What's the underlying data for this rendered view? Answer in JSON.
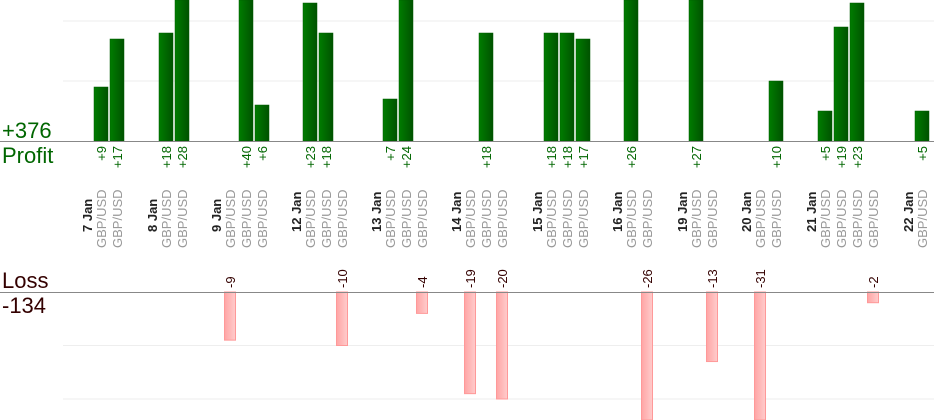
{
  "chart_data": {
    "type": "bar",
    "title": "",
    "profit_total_label": "+376",
    "profit_label": "Profit",
    "loss_label": "Loss",
    "loss_total_label": "-134",
    "colors": {
      "profit": "#006e00",
      "profit_text": "#006600",
      "loss": "#ffb3b3",
      "loss_border": "#ff9999",
      "loss_text": "#330000",
      "axis": "#888888",
      "grid": "#eeeeee"
    },
    "groups": [
      {
        "date": "7 Jan",
        "trades": [
          {
            "symbol": "GBP/USD",
            "value": 9
          },
          {
            "symbol": "GBP/USD",
            "value": 17
          }
        ]
      },
      {
        "date": "8 Jan",
        "trades": [
          {
            "symbol": "GBP/USD",
            "value": 18
          },
          {
            "symbol": "GBP/USD",
            "value": 28
          }
        ]
      },
      {
        "date": "9 Jan",
        "trades": [
          {
            "symbol": "GBP/USD",
            "value": -9
          },
          {
            "symbol": "GBP/USD",
            "value": 40
          },
          {
            "symbol": "GBP/USD",
            "value": 6
          }
        ]
      },
      {
        "date": "12 Jan",
        "trades": [
          {
            "symbol": "GBP/USD",
            "value": 23
          },
          {
            "symbol": "GBP/USD",
            "value": 18
          },
          {
            "symbol": "GBP/USD",
            "value": -10
          }
        ]
      },
      {
        "date": "13 Jan",
        "trades": [
          {
            "symbol": "GBP/USD",
            "value": 7
          },
          {
            "symbol": "GBP/USD",
            "value": 24
          },
          {
            "symbol": "GBP/USD",
            "value": -4
          }
        ]
      },
      {
        "date": "14 Jan",
        "trades": [
          {
            "symbol": "GBP/USD",
            "value": -19
          },
          {
            "symbol": "GBP/USD",
            "value": 18
          },
          {
            "symbol": "GBP/USD",
            "value": -20
          }
        ]
      },
      {
        "date": "15 Jan",
        "trades": [
          {
            "symbol": "GBP/USD",
            "value": 18
          },
          {
            "symbol": "GBP/USD",
            "value": 18
          },
          {
            "symbol": "GBP/USD",
            "value": 17
          }
        ]
      },
      {
        "date": "16 Jan",
        "trades": [
          {
            "symbol": "GBP/USD",
            "value": 26
          },
          {
            "symbol": "GBP/USD",
            "value": -26
          }
        ]
      },
      {
        "date": "19 Jan",
        "trades": [
          {
            "symbol": "GBP/USD",
            "value": 27
          },
          {
            "symbol": "GBP/USD",
            "value": -13
          }
        ]
      },
      {
        "date": "20 Jan",
        "trades": [
          {
            "symbol": "GBP/USD",
            "value": -31
          },
          {
            "symbol": "GBP/USD",
            "value": 10
          }
        ]
      },
      {
        "date": "21 Jan",
        "trades": [
          {
            "symbol": "GBP/USD",
            "value": 5
          },
          {
            "symbol": "GBP/USD",
            "value": 19
          },
          {
            "symbol": "GBP/USD",
            "value": 23
          },
          {
            "symbol": "GBP/USD",
            "value": -2
          }
        ]
      },
      {
        "date": "22 Jan",
        "trades": [
          {
            "symbol": "GBP/USD",
            "value": 5
          }
        ]
      }
    ],
    "grid": true,
    "gridline_step": 10
  }
}
